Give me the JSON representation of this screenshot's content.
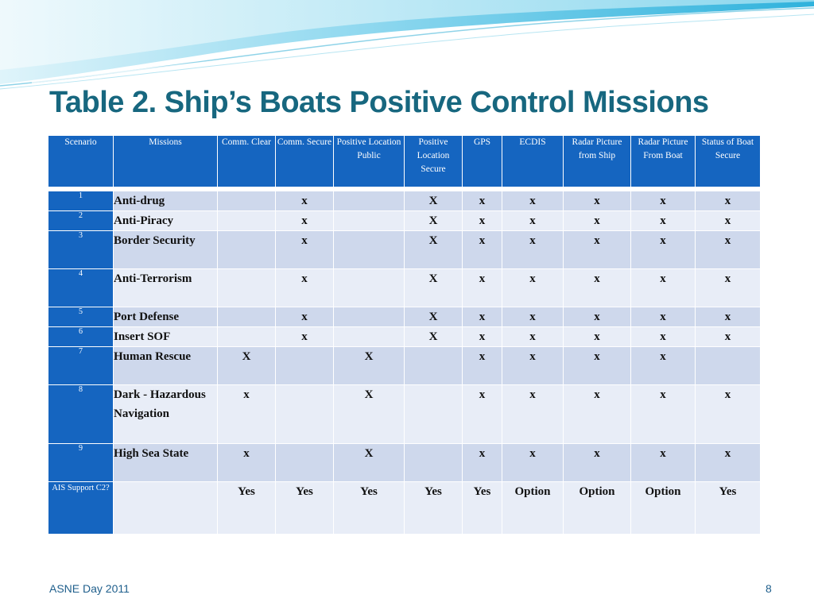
{
  "slide": {
    "title": "Table 2.  Ship’s Boats Positive Control Missions",
    "footer_left": "ASNE Day 2011",
    "page_number": "8"
  },
  "colors": {
    "title": "#17677f",
    "header_bg": "#1565c0",
    "row_odd": "#ced8ec",
    "row_even": "#e8edf7",
    "banner_light": "#bfe9f5",
    "banner_mid": "#5bc7e6"
  },
  "table": {
    "headers": [
      "Scenario",
      "Missions",
      "Comm. Clear",
      "Comm. Secure",
      "Positive Location Public",
      "Positive Location Secure",
      "GPS",
      "ECDIS",
      "Radar Picture from Ship",
      "Radar Picture From Boat",
      "Status of Boat Secure"
    ],
    "rows": [
      {
        "scenario": "1",
        "mission": "Anti-drug",
        "cells": [
          "",
          "x",
          "",
          "X",
          "x",
          "x",
          "x",
          "x",
          "x"
        ]
      },
      {
        "scenario": "2",
        "mission": "Anti-Piracy",
        "cells": [
          "",
          "x",
          "",
          "X",
          "x",
          "x",
          "x",
          "x",
          "x"
        ]
      },
      {
        "scenario": "3",
        "mission": "Border Security",
        "cells": [
          "",
          "x",
          "",
          "X",
          "x",
          "x",
          "x",
          "x",
          "x"
        ]
      },
      {
        "scenario": "4",
        "mission": "Anti-Terrorism",
        "cells": [
          "",
          "x",
          "",
          "X",
          "x",
          "x",
          "x",
          "x",
          "x"
        ]
      },
      {
        "scenario": "5",
        "mission": "Port Defense",
        "cells": [
          "",
          "x",
          "",
          "X",
          "x",
          "x",
          "x",
          "x",
          "x"
        ]
      },
      {
        "scenario": "6",
        "mission": "Insert SOF",
        "cells": [
          "",
          "x",
          "",
          "X",
          "x",
          "x",
          "x",
          "x",
          "x"
        ]
      },
      {
        "scenario": "7",
        "mission": "Human Rescue",
        "cells": [
          "X",
          "",
          "X",
          "",
          "x",
          "x",
          "x",
          "x",
          ""
        ]
      },
      {
        "scenario": "8",
        "mission": "Dark - Hazardous Navigation",
        "cells": [
          "x",
          "",
          "X",
          "",
          "x",
          "x",
          "x",
          "x",
          "x"
        ]
      },
      {
        "scenario": "9",
        "mission": "High Sea State",
        "cells": [
          "x",
          "",
          "X",
          "",
          "x",
          "x",
          "x",
          "x",
          "x"
        ]
      },
      {
        "scenario": "AIS Support C2?",
        "mission": "",
        "cells": [
          "Yes",
          "Yes",
          "Yes",
          "Yes",
          "Yes",
          "Option",
          "Option",
          "Option",
          "Yes"
        ]
      }
    ]
  }
}
